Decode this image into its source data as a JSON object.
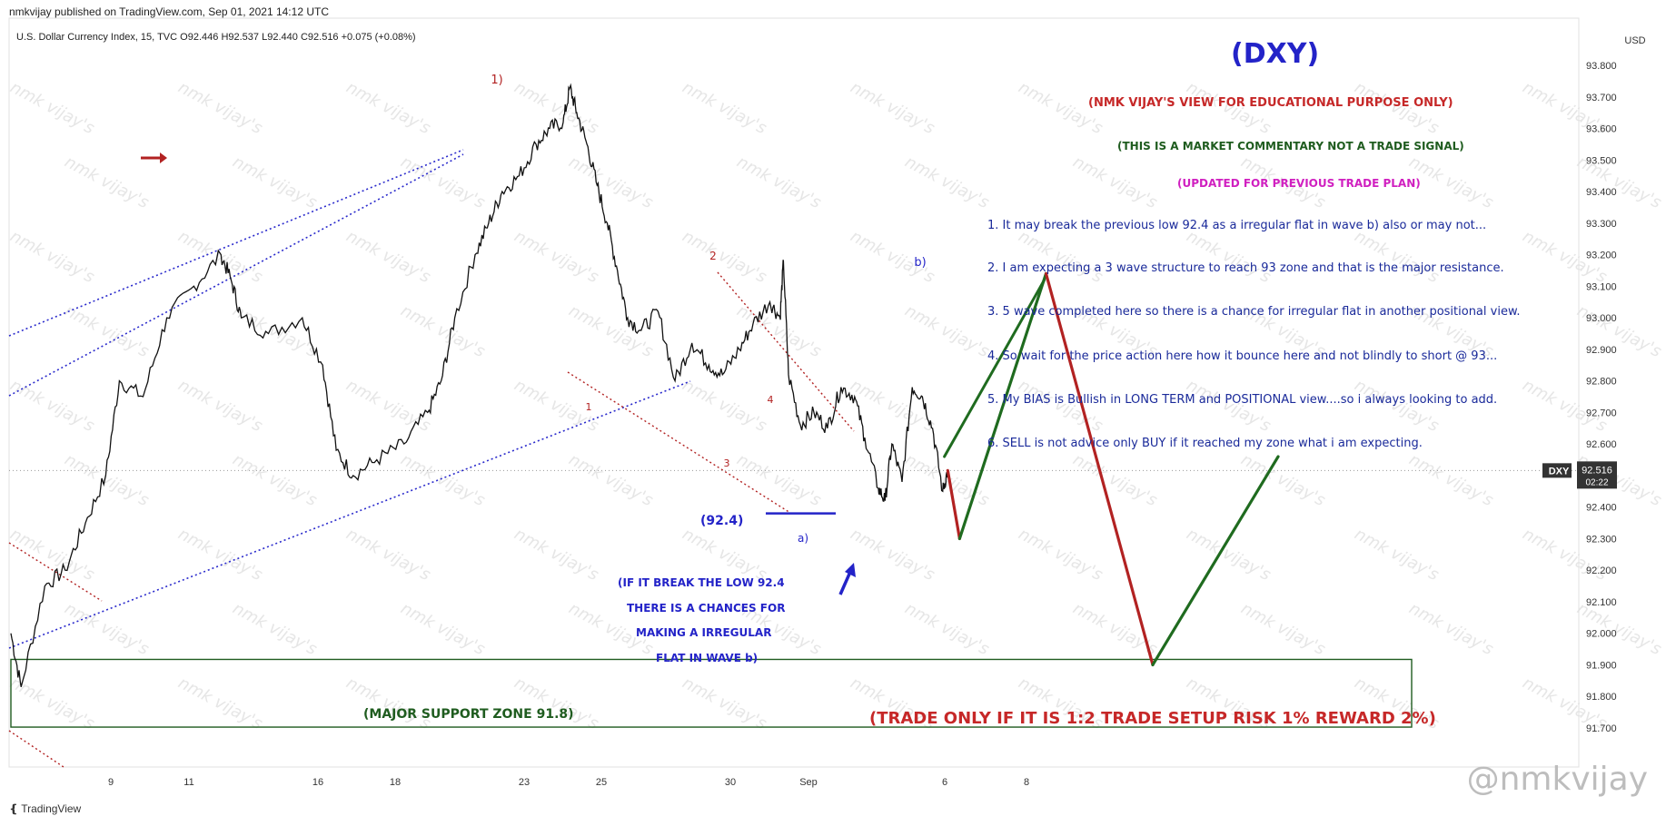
{
  "header": {
    "published": "nmkvijay published on TradingView.com, Sep 01, 2021 14:12 UTC",
    "symbol": "U.S. Dollar Currency Index, 15, TVC",
    "open_label": "O",
    "open": "92.446",
    "high_label": "H",
    "high": "92.537",
    "low_label": "L",
    "low": "92.440",
    "close_label": "C",
    "close": "92.516",
    "change": "+0.075 (+0.08%)"
  },
  "chart_data": {
    "type": "line",
    "title": "(DXY)",
    "currency": "USD",
    "ylim": [
      91.68,
      93.86
    ],
    "y_ticks": [
      "93.800",
      "93.700",
      "93.600",
      "93.500",
      "93.400",
      "93.300",
      "93.200",
      "93.100",
      "93.000",
      "92.900",
      "92.800",
      "92.700",
      "92.600",
      "92.500",
      "92.400",
      "92.300",
      "92.200",
      "92.100",
      "92.000",
      "91.900",
      "91.800",
      "91.700"
    ],
    "x_ticks": [
      "9",
      "11",
      "16",
      "18",
      "23",
      "25",
      "30",
      "Sep",
      "6",
      "8"
    ],
    "current_price": {
      "symbol": "DXY",
      "value": "92.516",
      "countdown": "02:22"
    },
    "price_series": [
      {
        "d": 0,
        "p": 92.0
      },
      {
        "d": 0.3,
        "p": 91.83
      },
      {
        "d": 1,
        "p": 92.15
      },
      {
        "d": 1.6,
        "p": 92.2
      },
      {
        "d": 2.2,
        "p": 92.35
      },
      {
        "d": 2.8,
        "p": 92.5
      },
      {
        "d": 3.2,
        "p": 92.8
      },
      {
        "d": 3.9,
        "p": 92.75
      },
      {
        "d": 4.6,
        "p": 93.0
      },
      {
        "d": 5.4,
        "p": 93.1
      },
      {
        "d": 6.2,
        "p": 93.2
      },
      {
        "d": 6.5,
        "p": 93.12
      },
      {
        "d": 6.8,
        "p": 93.0
      },
      {
        "d": 7.6,
        "p": 92.95
      },
      {
        "d": 8.6,
        "p": 93.0
      },
      {
        "d": 9.2,
        "p": 92.85
      },
      {
        "d": 9.6,
        "p": 92.58
      },
      {
        "d": 10.1,
        "p": 92.5
      },
      {
        "d": 10.8,
        "p": 92.55
      },
      {
        "d": 11.6,
        "p": 92.6
      },
      {
        "d": 12.3,
        "p": 92.7
      },
      {
        "d": 12.7,
        "p": 92.8
      },
      {
        "d": 13.1,
        "p": 93.0
      },
      {
        "d": 13.7,
        "p": 93.2
      },
      {
        "d": 14.1,
        "p": 93.3
      },
      {
        "d": 14.5,
        "p": 93.4
      },
      {
        "d": 15.0,
        "p": 93.45
      },
      {
        "d": 15.5,
        "p": 93.55
      },
      {
        "d": 15.9,
        "p": 93.6
      },
      {
        "d": 16.3,
        "p": 93.62
      },
      {
        "d": 16.5,
        "p": 93.73
      },
      {
        "d": 16.7,
        "p": 93.65
      },
      {
        "d": 17.0,
        "p": 93.55
      },
      {
        "d": 17.3,
        "p": 93.42
      },
      {
        "d": 17.6,
        "p": 93.3
      },
      {
        "d": 17.9,
        "p": 93.15
      },
      {
        "d": 18.2,
        "p": 93.0
      },
      {
        "d": 18.6,
        "p": 92.96
      },
      {
        "d": 19.1,
        "p": 93.02
      },
      {
        "d": 19.6,
        "p": 92.8
      },
      {
        "d": 20.1,
        "p": 92.92
      },
      {
        "d": 20.6,
        "p": 92.85
      },
      {
        "d": 21.0,
        "p": 92.82
      },
      {
        "d": 21.5,
        "p": 92.9
      },
      {
        "d": 21.9,
        "p": 92.98
      },
      {
        "d": 22.4,
        "p": 93.05
      },
      {
        "d": 22.7,
        "p": 93.0
      },
      {
        "d": 22.8,
        "p": 93.18
      },
      {
        "d": 22.95,
        "p": 92.82
      },
      {
        "d": 23.3,
        "p": 92.66
      },
      {
        "d": 23.7,
        "p": 92.7
      },
      {
        "d": 24.1,
        "p": 92.65
      },
      {
        "d": 24.5,
        "p": 92.78
      },
      {
        "d": 24.9,
        "p": 92.75
      },
      {
        "d": 25.2,
        "p": 92.62
      },
      {
        "d": 25.6,
        "p": 92.46
      },
      {
        "d": 25.8,
        "p": 92.42
      },
      {
        "d": 26.0,
        "p": 92.6
      },
      {
        "d": 26.3,
        "p": 92.48
      },
      {
        "d": 26.6,
        "p": 92.78
      },
      {
        "d": 26.9,
        "p": 92.75
      },
      {
        "d": 27.2,
        "p": 92.65
      },
      {
        "d": 27.5,
        "p": 92.45
      },
      {
        "d": 27.65,
        "p": 92.516
      }
    ],
    "projection": [
      {
        "leg": "down",
        "color": "#b22222",
        "from": {
          "d": 27.65,
          "p": 92.516
        },
        "to": {
          "d": 28.0,
          "p": 92.3
        }
      },
      {
        "leg": "up",
        "color": "#1f6b1f",
        "from": {
          "d": 28.0,
          "p": 92.3
        },
        "to": {
          "d": 30.55,
          "p": 93.14
        }
      },
      {
        "leg": "down",
        "color": "#b22222",
        "from": {
          "d": 30.55,
          "p": 93.14
        },
        "to": {
          "d": 33.7,
          "p": 91.9
        }
      },
      {
        "leg": "up",
        "color": "#1f6b1f",
        "from": {
          "d": 33.7,
          "p": 91.9
        },
        "to": {
          "d": 37.4,
          "p": 92.56
        }
      }
    ],
    "wave_labels": [
      "1)",
      "2",
      "1",
      "3",
      "4",
      "b)",
      "a)"
    ],
    "support_zone": {
      "label": "(MAJOR SUPPORT ZONE 91.8)",
      "low": 91.72,
      "high": 91.9
    },
    "level_label": "(92.4)",
    "level_value": 92.4,
    "watermark": "nmk vijay's"
  },
  "annotations": {
    "title": "(DXY)",
    "disclaimer": "(NMK VIJAY'S VIEW FOR EDUCATIONAL PURPOSE ONLY)",
    "commentary": "(THIS IS A MARKET COMMENTARY NOT A TRADE SIGNAL)",
    "updated": "(UPDATED FOR PREVIOUS TRADE PLAN)",
    "points": [
      "1. It may break the previous low 92.4 as a irregular flat in wave b) also or may not...",
      "2. I am expecting a 3 wave structure to reach  93 zone and that is the major resistance.",
      "3. 5 wave completed here so there is a chance for irregular flat in another positional view.",
      "4. So wait for the price action here how it bounce here and not blindly to short @ 93...",
      "5. My BIAS is Bullish in LONG TERM and POSITIONAL view....so i always looking to add.",
      "6. SELL is not advice only BUY if it reached my zone what i am expecting."
    ],
    "irregular_note": [
      "(IF IT BREAK THE LOW 92.4",
      "THERE IS A CHANCES FOR",
      "MAKING A IRREGULAR",
      "FLAT IN WAVE b)"
    ],
    "trade_note": "(TRADE ONLY IF IT IS 1:2 TRADE SETUP RISK 1% REWARD 2%)"
  },
  "footer": {
    "brand": "TradingView"
  },
  "watermark_corner": "@nmkvijay",
  "colors": {
    "price": "#111111",
    "up": "#1f6b1f",
    "down": "#b22222",
    "channel": "#2a2acc",
    "title": "#2323c8",
    "magenta": "#d020c0",
    "zone": "#1f5c1f"
  }
}
